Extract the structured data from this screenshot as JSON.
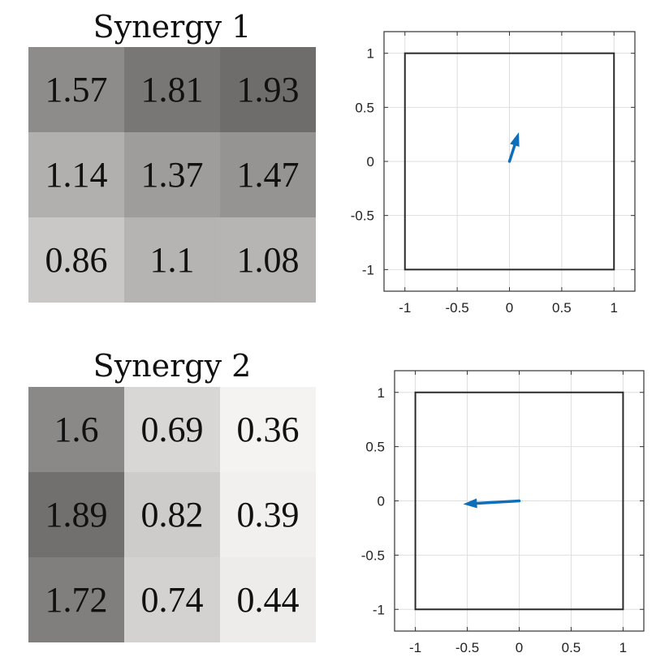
{
  "chart_data": [
    {
      "type": "heatmap",
      "title": "Synergy 1",
      "values": [
        [
          1.57,
          1.81,
          1.93
        ],
        [
          1.14,
          1.37,
          1.47
        ],
        [
          0.86,
          1.1,
          1.08
        ]
      ],
      "labels": [
        [
          "1.57",
          "1.81",
          "1.93"
        ],
        [
          "1.14",
          "1.37",
          "1.47"
        ],
        [
          "0.86",
          "1.1",
          "1.08"
        ]
      ],
      "colormap": "grayscale, higher = darker",
      "color_range": [
        0.3,
        2.0
      ]
    },
    {
      "type": "vector",
      "xlim": [
        -1.2,
        1.2
      ],
      "ylim": [
        -1.2,
        1.2
      ],
      "xticks": [
        -1,
        -0.5,
        0,
        0.5,
        1
      ],
      "yticks": [
        -1,
        -0.5,
        0,
        0.5,
        1
      ],
      "xtick_labels": [
        "-1",
        "-0.5",
        "0",
        "0.5",
        "1"
      ],
      "ytick_labels": [
        "-1",
        "-0.5",
        "0",
        "0.5",
        "1"
      ],
      "grid": true,
      "square": {
        "x": [
          -1,
          1
        ],
        "y": [
          -1,
          1
        ]
      },
      "arrow": {
        "from": [
          0,
          0
        ],
        "to": [
          0.09,
          0.27
        ],
        "color": "#0e6fb8"
      }
    },
    {
      "type": "heatmap",
      "title": "Synergy 2",
      "values": [
        [
          1.6,
          0.69,
          0.36
        ],
        [
          1.89,
          0.82,
          0.39
        ],
        [
          1.72,
          0.74,
          0.44
        ]
      ],
      "labels": [
        [
          "1.6",
          "0.69",
          "0.36"
        ],
        [
          "1.89",
          "0.82",
          "0.39"
        ],
        [
          "1.72",
          "0.74",
          "0.44"
        ]
      ],
      "colormap": "grayscale, higher = darker",
      "color_range": [
        0.3,
        2.0
      ]
    },
    {
      "type": "vector",
      "xlim": [
        -1.2,
        1.2
      ],
      "ylim": [
        -1.2,
        1.2
      ],
      "xticks": [
        -1,
        -0.5,
        0,
        0.5,
        1
      ],
      "yticks": [
        -1,
        -0.5,
        0,
        0.5,
        1
      ],
      "xtick_labels": [
        "-1",
        "-0.5",
        "0",
        "0.5",
        "1"
      ],
      "ytick_labels": [
        "-1",
        "-0.5",
        "0",
        "0.5",
        "1"
      ],
      "grid": true,
      "square": {
        "x": [
          -1,
          1
        ],
        "y": [
          -1,
          1
        ]
      },
      "arrow": {
        "from": [
          0,
          0
        ],
        "to": [
          -0.54,
          -0.03
        ],
        "color": "#0e6fb8"
      }
    }
  ]
}
